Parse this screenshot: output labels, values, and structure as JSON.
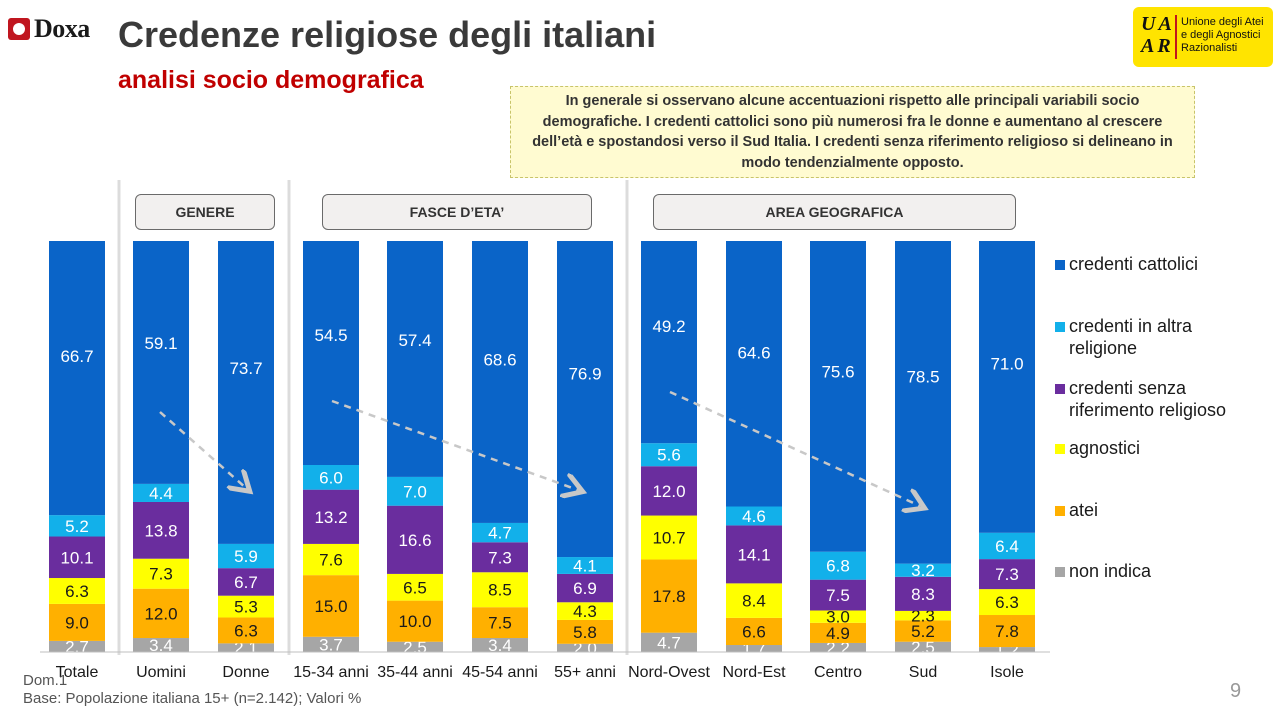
{
  "header": {
    "logo_text": "Doxa",
    "title": "Credenze religiose degli italiani",
    "subtitle": "analisi socio demografica",
    "uaar_letters": "UA AR",
    "uaar_line1": "Unione degli Atei",
    "uaar_line2": "e degli Agnostici",
    "uaar_line3": "Razionalisti"
  },
  "note": "In generale si osservano alcune accentuazioni rispetto alle principali variabili socio demografiche. I credenti cattolici sono più numerosi fra le donne e aumentano al crescere dell’età e spostandosi verso il Sud Italia. I credenti senza riferimento religioso si delineano in modo tendenzialmente opposto.",
  "groups": [
    "GENERE",
    "FASCE D’ETA’",
    "AREA GEOGRAFICA"
  ],
  "footer": {
    "line1": "Dom.1",
    "line2": "Base: Popolazione italiana 15+ (n=2.142); Valori %",
    "page": "9"
  },
  "colors": {
    "credenti_cattolici": "#0a64c8",
    "credenti_altra": "#12b0ea",
    "senza_riferimento": "#6a2d9e",
    "agnostici": "#ffff00",
    "atei": "#ffb000",
    "non_indica": "#a6a6a6"
  },
  "chart_data": {
    "type": "bar",
    "stacked": true,
    "categories": [
      "Totale",
      "Uomini",
      "Donne",
      "15-34 anni",
      "35-44 anni",
      "45-54 anni",
      "55+ anni",
      "Nord-Ovest",
      "Nord-Est",
      "Centro",
      "Sud",
      "Isole"
    ],
    "series": [
      {
        "name": "non indica",
        "values": [
          2.7,
          3.4,
          2.1,
          3.7,
          2.5,
          3.4,
          2.0,
          4.7,
          1.7,
          2.2,
          2.5,
          1.2
        ]
      },
      {
        "name": "atei",
        "values": [
          9.0,
          12.0,
          6.3,
          15.0,
          10.0,
          7.5,
          5.8,
          17.8,
          6.6,
          4.9,
          5.2,
          7.8
        ]
      },
      {
        "name": "agnostici",
        "values": [
          6.3,
          7.3,
          5.3,
          7.6,
          6.5,
          8.5,
          4.3,
          10.7,
          8.4,
          3.0,
          2.3,
          6.3
        ]
      },
      {
        "name": "credenti senza riferimento religioso",
        "values": [
          10.1,
          13.8,
          6.7,
          13.2,
          16.6,
          7.3,
          6.9,
          12.0,
          14.1,
          7.5,
          8.3,
          7.3
        ]
      },
      {
        "name": "credenti in altra religione",
        "values": [
          5.2,
          4.4,
          5.9,
          6.0,
          7.0,
          4.7,
          4.1,
          5.6,
          4.6,
          6.8,
          3.2,
          6.4
        ]
      },
      {
        "name": "credenti cattolici",
        "values": [
          66.7,
          59.1,
          73.7,
          54.5,
          57.4,
          68.6,
          76.9,
          49.2,
          64.6,
          75.6,
          78.5,
          71.0
        ]
      }
    ],
    "legend": [
      "credenti cattolici",
      "credenti in altra religione",
      "credenti senza riferimento religioso",
      "agnostici",
      "atei",
      "non indica"
    ],
    "legend_position": "right",
    "ylim": [
      0,
      100
    ],
    "grid": false
  }
}
